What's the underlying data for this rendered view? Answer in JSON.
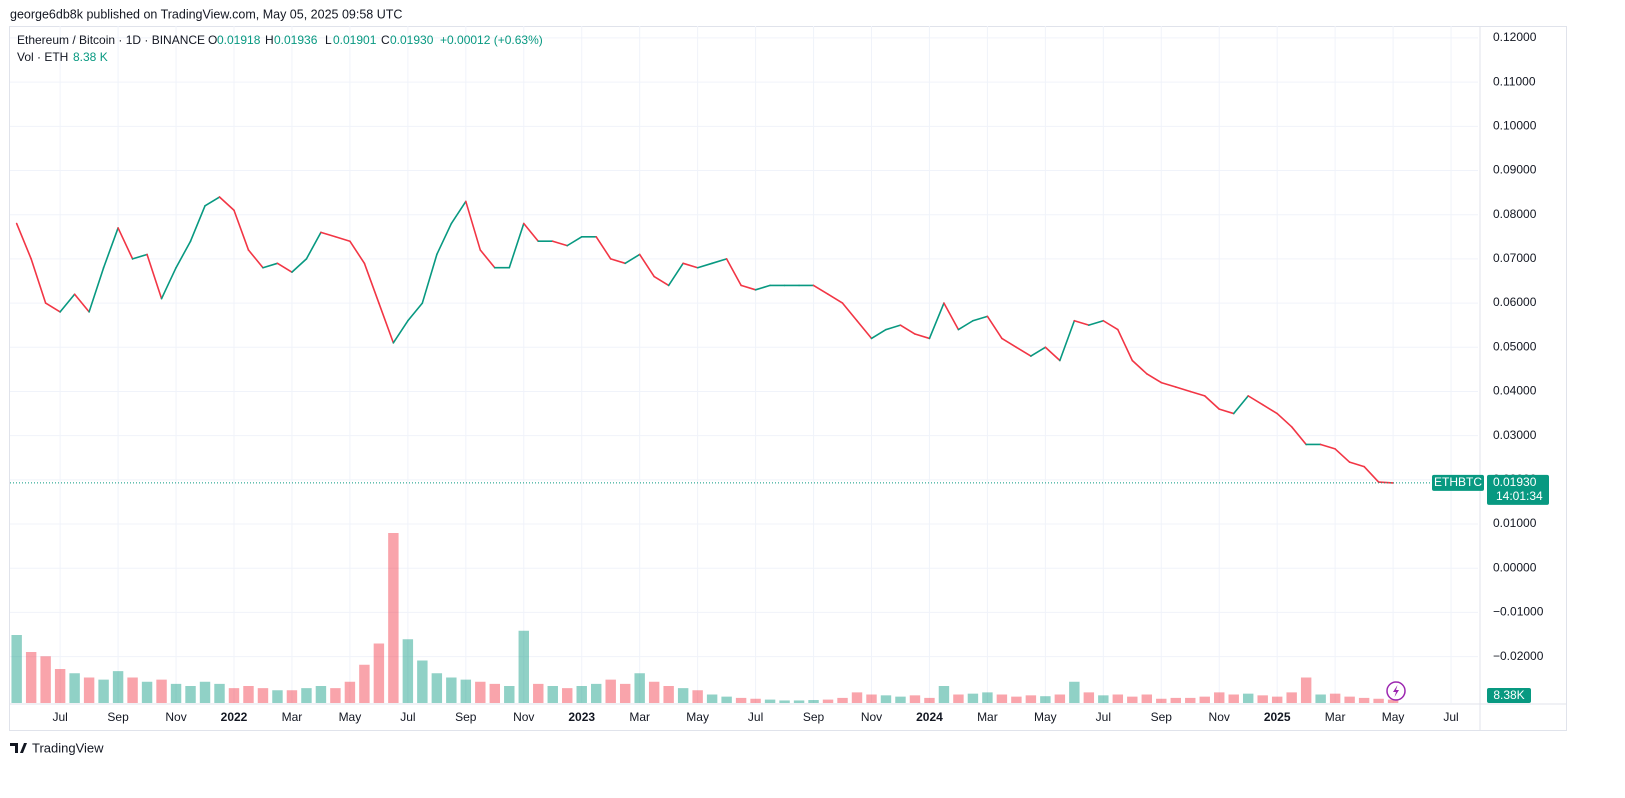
{
  "chart_data": {
    "type": "candlestick-line",
    "publisher": "george6db8k published on TradingView.com, May 05, 2025 09:58 UTC",
    "legend": {
      "symbol": "Ethereum / Bitcoin · 1D · BINANCE",
      "o_label": "O",
      "o_value": "0.01918",
      "h_label": "H",
      "h_value": "0.01936",
      "l_label": "L",
      "l_value": "0.01901",
      "c_label": "C",
      "c_value": "0.01930",
      "change": "+0.00012 (+0.63%)",
      "volume_label": "Vol · ETH",
      "volume_value": "8.38 K"
    },
    "price_tag": {
      "ticker": "ETHBTC",
      "countdown": "14:01:34"
    },
    "last_price": {
      "value": 0.0193,
      "label": "0.01930"
    },
    "volume_tag": "8.38K",
    "brand": "TradingView",
    "up_color": "#089981",
    "down_color": "#f23645",
    "grid": true,
    "xlim": [
      4.27,
      54.93
    ],
    "xticks": [
      {
        "value": 6,
        "label": "Jul"
      },
      {
        "value": 8,
        "label": "Sep"
      },
      {
        "value": 10,
        "label": "Nov"
      },
      {
        "value": 12,
        "label": "2022"
      },
      {
        "value": 14,
        "label": "Mar"
      },
      {
        "value": 16,
        "label": "May"
      },
      {
        "value": 18,
        "label": "Jul"
      },
      {
        "value": 20,
        "label": "Sep"
      },
      {
        "value": 22,
        "label": "Nov"
      },
      {
        "value": 24,
        "label": "2023"
      },
      {
        "value": 26,
        "label": "Mar"
      },
      {
        "value": 28,
        "label": "May"
      },
      {
        "value": 30,
        "label": "Jul"
      },
      {
        "value": 32,
        "label": "Sep"
      },
      {
        "value": 34,
        "label": "Nov"
      },
      {
        "value": 36,
        "label": "2024"
      },
      {
        "value": 38,
        "label": "Mar"
      },
      {
        "value": 40,
        "label": "May"
      },
      {
        "value": 42,
        "label": "Jul"
      },
      {
        "value": 44,
        "label": "Sep"
      },
      {
        "value": 46,
        "label": "Nov"
      },
      {
        "value": 48,
        "label": "2025"
      },
      {
        "value": 50,
        "label": "Mar"
      },
      {
        "value": 52,
        "label": "May"
      },
      {
        "value": 54,
        "label": "Jul"
      }
    ],
    "ylim": [
      -0.0305,
      0.1227
    ],
    "yticks": [
      {
        "value": 0.12,
        "label": "0.12000"
      },
      {
        "value": 0.11,
        "label": "0.11000"
      },
      {
        "value": 0.1,
        "label": "0.10000"
      },
      {
        "value": 0.09,
        "label": "0.09000"
      },
      {
        "value": 0.08,
        "label": "0.08000"
      },
      {
        "value": 0.07,
        "label": "0.07000"
      },
      {
        "value": 0.06,
        "label": "0.06000"
      },
      {
        "value": 0.05,
        "label": "0.05000"
      },
      {
        "value": 0.04,
        "label": "0.04000"
      },
      {
        "value": 0.03,
        "label": "0.03000"
      },
      {
        "value": 0.02,
        "label": "0.02000"
      },
      {
        "value": 0.01,
        "label": "0.01000"
      },
      {
        "value": 0,
        "label": "0.00000"
      },
      {
        "value": -0.01,
        "label": "−0.01000"
      },
      {
        "value": -0.02,
        "label": "−0.02000"
      }
    ],
    "x": [
      4.5,
      5,
      5.5,
      6,
      6.5,
      7,
      7.5,
      8,
      8.5,
      9,
      9.5,
      10,
      10.5,
      11,
      11.5,
      12,
      12.5,
      13,
      13.5,
      14,
      14.5,
      15,
      15.5,
      16,
      16.5,
      17,
      17.5,
      18,
      18.5,
      19,
      19.5,
      20,
      20.5,
      21,
      21.5,
      22,
      22.5,
      23,
      23.5,
      24,
      24.5,
      25,
      25.5,
      26,
      26.5,
      27,
      27.5,
      28,
      28.5,
      29,
      29.5,
      30,
      30.5,
      31,
      31.5,
      32,
      32.5,
      33,
      33.5,
      34,
      34.5,
      35,
      35.5,
      36,
      36.5,
      37,
      37.5,
      38,
      38.5,
      39,
      39.5,
      40,
      40.5,
      41,
      41.5,
      42,
      42.5,
      43,
      43.5,
      44,
      44.5,
      45,
      45.5,
      46,
      46.5,
      47,
      47.5,
      48,
      48.5,
      49,
      49.5,
      50,
      50.5,
      51,
      51.5,
      52
    ],
    "series": [
      {
        "name": "Ethereum / Bitcoin · 1D · BINANCE",
        "values": [
          0.078,
          0.07,
          0.06,
          0.058,
          0.062,
          0.058,
          0.068,
          0.077,
          0.07,
          0.071,
          0.061,
          0.068,
          0.074,
          0.082,
          0.084,
          0.081,
          0.072,
          0.068,
          0.069,
          0.067,
          0.07,
          0.076,
          0.075,
          0.074,
          0.069,
          0.06,
          0.051,
          0.056,
          0.06,
          0.071,
          0.078,
          0.083,
          0.072,
          0.068,
          0.068,
          0.078,
          0.074,
          0.074,
          0.073,
          0.075,
          0.075,
          0.07,
          0.069,
          0.071,
          0.066,
          0.064,
          0.069,
          0.068,
          0.069,
          0.07,
          0.064,
          0.063,
          0.064,
          0.064,
          0.064,
          0.064,
          0.062,
          0.06,
          0.056,
          0.052,
          0.054,
          0.055,
          0.053,
          0.052,
          0.06,
          0.054,
          0.056,
          0.057,
          0.052,
          0.05,
          0.048,
          0.05,
          0.047,
          0.056,
          0.055,
          0.056,
          0.054,
          0.047,
          0.044,
          0.042,
          0.041,
          0.04,
          0.039,
          0.036,
          0.035,
          0.039,
          0.037,
          0.035,
          0.032,
          0.028,
          0.028,
          0.027,
          0.024,
          0.023,
          0.0195,
          0.0193
        ]
      },
      {
        "name": "Vol · ETH",
        "values": [
          160,
          120,
          110,
          80,
          70,
          60,
          55,
          75,
          60,
          50,
          55,
          45,
          40,
          50,
          45,
          35,
          40,
          35,
          30,
          30,
          35,
          40,
          35,
          50,
          90,
          140,
          400,
          150,
          100,
          70,
          60,
          55,
          50,
          45,
          40,
          170,
          45,
          40,
          35,
          40,
          45,
          55,
          45,
          70,
          50,
          40,
          35,
          30,
          20,
          15,
          12,
          10,
          8,
          6,
          6,
          7,
          8,
          12,
          25,
          20,
          18,
          15,
          18,
          12,
          40,
          20,
          22,
          25,
          20,
          15,
          18,
          16,
          20,
          50,
          25,
          18,
          20,
          15,
          20,
          10,
          12,
          12,
          15,
          25,
          20,
          22,
          18,
          15,
          25,
          60,
          20,
          22,
          15,
          12,
          10,
          8
        ]
      }
    ]
  }
}
